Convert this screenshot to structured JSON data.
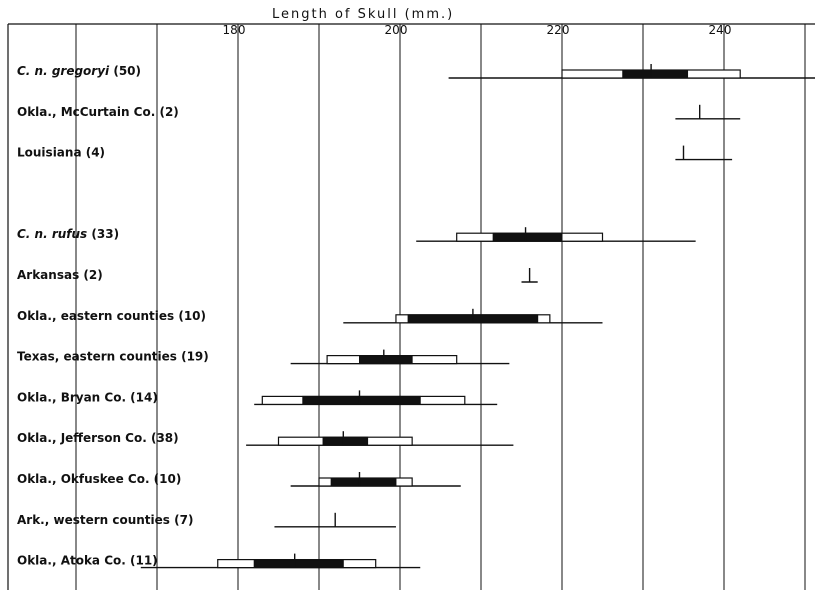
{
  "chart_data": {
    "type": "range",
    "title": "Length   of   Skull (mm.)",
    "x_ticks": [
      180,
      200,
      220,
      240
    ],
    "xlim": [
      170,
      252
    ],
    "grid": true,
    "rows": [
      {
        "label": "C. n. gregoryi (50)",
        "italic_part": "C. n. gregoryi",
        "count_part": " (50)",
        "min": 206,
        "max": 252,
        "sd_low": 220,
        "sd_high": 242,
        "se_low": 227.5,
        "se_high": 235.5,
        "mean": 231
      },
      {
        "label": "Okla., McCurtain Co. (2)",
        "min": 234,
        "max": 242,
        "mean": 237
      },
      {
        "label": "Louisiana (4)",
        "min": 234,
        "max": 241,
        "mean": 235
      },
      {
        "label": "C. n. rufus (33)",
        "italic_part": "C. n. rufus",
        "count_part": " (33)",
        "min": 202,
        "max": 236.5,
        "sd_low": 207,
        "sd_high": 225,
        "se_low": 211.5,
        "se_high": 220,
        "mean": 215.5
      },
      {
        "label": "Arkansas (2)",
        "min": 215,
        "max": 217,
        "mean": 216
      },
      {
        "label": "Okla., eastern counties (10)",
        "min": 193,
        "max": 225,
        "sd_low": 199.5,
        "sd_high": 218.5,
        "se_low": 201,
        "se_high": 217,
        "mean": 209
      },
      {
        "label": "Texas, eastern counties (19)",
        "min": 186.5,
        "max": 213.5,
        "sd_low": 191,
        "sd_high": 207,
        "se_low": 195,
        "se_high": 201.5,
        "mean": 198
      },
      {
        "label": "Okla., Bryan Co. (14)",
        "min": 182,
        "max": 212,
        "sd_low": 183,
        "sd_high": 208,
        "se_low": 188,
        "se_high": 202.5,
        "mean": 195
      },
      {
        "label": "Okla., Jefferson Co. (38)",
        "min": 181,
        "max": 214,
        "sd_low": 185,
        "sd_high": 201.5,
        "se_low": 190.5,
        "se_high": 196,
        "mean": 193
      },
      {
        "label": "Okla., Okfuskee Co. (10)",
        "min": 186.5,
        "max": 207.5,
        "sd_low": 190,
        "sd_high": 201.5,
        "se_low": 191.5,
        "se_high": 199.5,
        "mean": 195
      },
      {
        "label": "Ark., western counties (7)",
        "min": 184.5,
        "max": 199.5,
        "mean": 192
      },
      {
        "label": "Okla., Atoka Co. (11)",
        "min": 168,
        "max": 202.5,
        "sd_low": 177.5,
        "sd_high": 197,
        "se_low": 182,
        "se_high": 193,
        "mean": 187
      }
    ]
  }
}
